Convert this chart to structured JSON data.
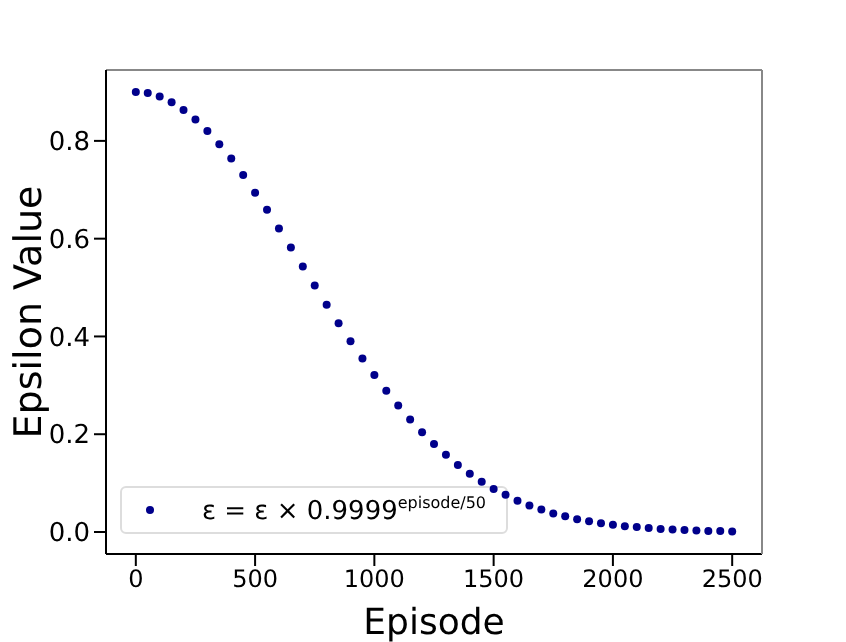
{
  "chart_data": {
    "type": "scatter",
    "xlabel": "Episode",
    "ylabel": "Epsilon Value",
    "xlim": [
      -125,
      2625
    ],
    "xticks": [
      0,
      500,
      1000,
      1500,
      2000,
      2500
    ],
    "ylim": [
      -0.045,
      0.945
    ],
    "yticks": [
      {
        "value": 0,
        "label": "0.0"
      },
      0.2,
      0.4,
      0.6,
      0.8
    ],
    "legend": "bottom left",
    "marker": "circle",
    "x": [
      0,
      50,
      100,
      150,
      200,
      250,
      300,
      350,
      400,
      450,
      500,
      550,
      600,
      650,
      700,
      750,
      800,
      850,
      900,
      950,
      1000,
      1050,
      1100,
      1150,
      1200,
      1250,
      1300,
      1350,
      1400,
      1450,
      1500,
      1550,
      1600,
      1650,
      1700,
      1750,
      1800,
      1850,
      1900,
      1950,
      2000,
      2050,
      2100,
      2150,
      2200,
      2250,
      2300,
      2350,
      2400,
      2450,
      2500
    ],
    "series": [
      {
        "name": "ε = ε × 0.9999$^{episode/50}$",
        "color": "#00008b",
        "values": [
          0.9,
          0.898,
          0.891,
          0.879,
          0.863,
          0.844,
          0.82,
          0.793,
          0.764,
          0.73,
          0.694,
          0.659,
          0.621,
          0.582,
          0.543,
          0.504,
          0.465,
          0.427,
          0.39,
          0.355,
          0.321,
          0.289,
          0.259,
          0.23,
          0.204,
          0.18,
          0.158,
          0.137,
          0.119,
          0.103,
          0.088,
          0.076,
          0.064,
          0.054,
          0.046,
          0.038,
          0.032,
          0.026,
          0.022,
          0.018,
          0.015,
          0.012,
          0.01,
          0.008,
          0.006,
          0.005,
          0.004,
          0.003,
          0.002,
          0.002,
          0.001
        ]
      }
    ]
  }
}
